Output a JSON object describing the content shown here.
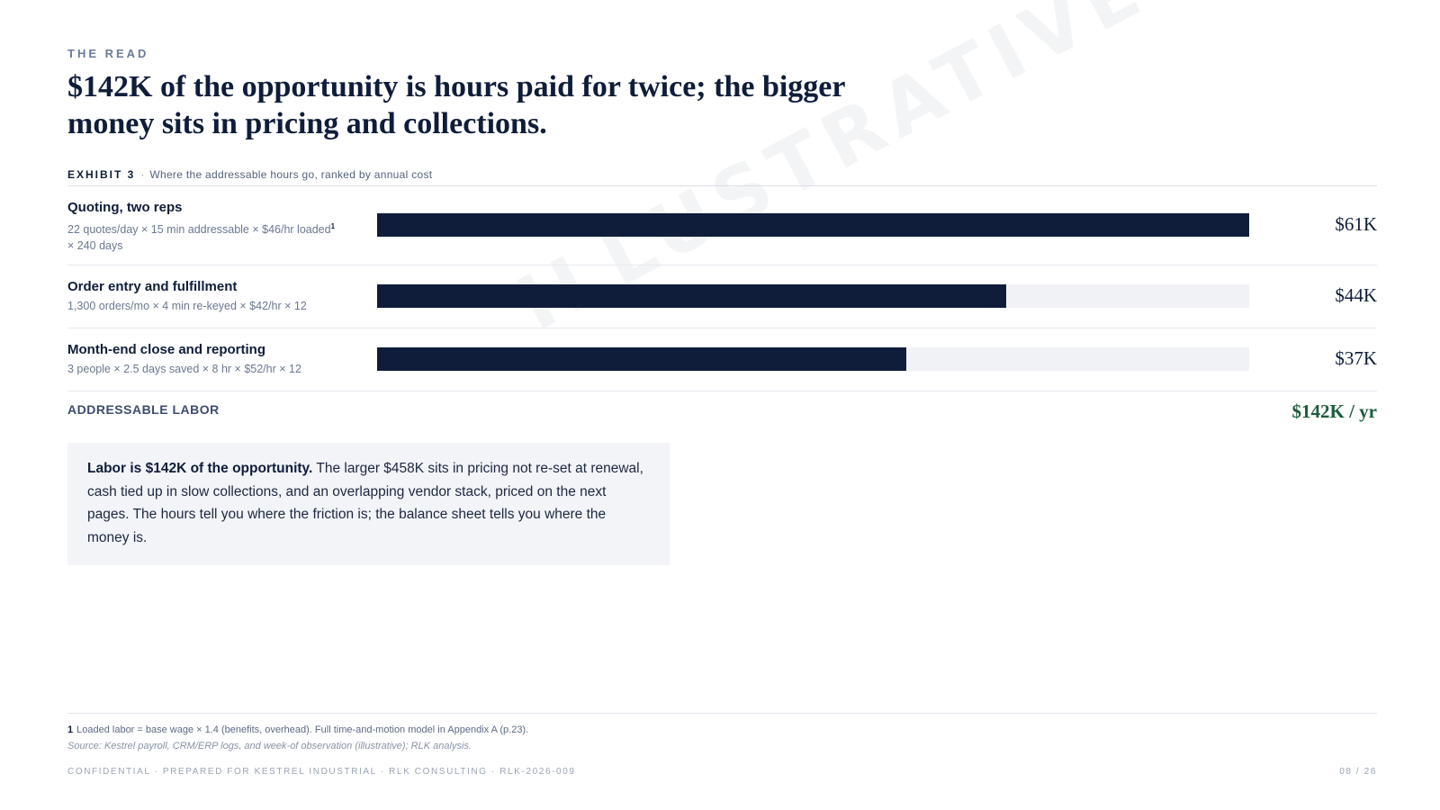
{
  "eyebrow": "THE READ",
  "headline": "$142K of the opportunity is hours paid for twice; the bigger money sits in pricing and collections.",
  "watermark": "ILLUSTRATIVE SAMPLE",
  "exhibit": {
    "label": "EXHIBIT 3",
    "separator": "·",
    "caption": "Where the addressable hours go, ranked by annual cost"
  },
  "chart_data": {
    "type": "bar",
    "orientation": "horizontal",
    "categories": [
      "Quoting, two reps",
      "Order entry and fulfillment",
      "Month-end close and reporting"
    ],
    "values": [
      61,
      44,
      37
    ],
    "value_labels": [
      "$61K",
      "$44K",
      "$37K"
    ],
    "subtitles": [
      "22 quotes/day × 15 min addressable × $46/hr loaded",
      "1,300 orders/mo × 4 min re-keyed × $42/hr × 12",
      "3 people × 2.5 days saved × 8 hr × $52/hr × 12"
    ],
    "subtitle_footnote_marker": "1",
    "subtitle_continuation": "× 240 days",
    "xlim": [
      0,
      61
    ],
    "colors": {
      "bar": "#0f1d3a",
      "track": "#f0f2f6"
    },
    "total": {
      "label": "ADDRESSABLE LABOR",
      "value": "$142K / yr",
      "color": "#1a5c3a"
    }
  },
  "callout": {
    "lead": "Labor is $142K of the opportunity.",
    "body": " The larger $458K sits in pricing not re-set at renewal, cash tied up in slow collections, and an overlapping vendor stack, priced on the next pages. The hours tell you where the friction is; the balance sheet tells you where the money is."
  },
  "footnote": {
    "number": "1",
    "text": "Loaded labor = base wage × 1.4 (benefits, overhead). Full time-and-motion model in Appendix A (p.23).",
    "source": "Source: Kestrel payroll, CRM/ERP logs, and week-of observation (illustrative); RLK analysis."
  },
  "footer": {
    "confidential": "CONFIDENTIAL · PREPARED FOR KESTREL INDUSTRIAL · RLK CONSULTING · RLK-2026-009",
    "page": "08 / 26"
  }
}
